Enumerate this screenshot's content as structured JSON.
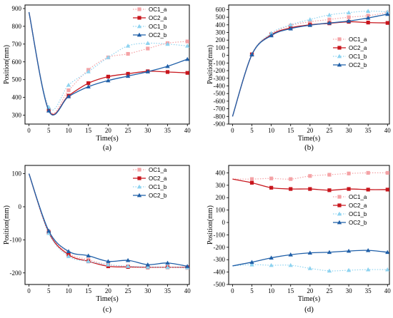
{
  "colors": {
    "OC1_a": "#f4a3a6",
    "OC2_a": "#c8161d",
    "OC1_b": "#8ed3f0",
    "OC2_b": "#1f5fa8"
  },
  "chart_data": [
    {
      "type": "line",
      "panel_label": "(a)",
      "xlabel": "Time(s)",
      "ylabel": "Position(mm)",
      "xlim": [
        -1,
        40.5
      ],
      "ylim": [
        250,
        920
      ],
      "xticks": [
        0,
        5,
        10,
        15,
        20,
        25,
        30,
        35,
        40
      ],
      "yticks": [
        300,
        400,
        500,
        600,
        700,
        800,
        900
      ],
      "legend_position": "top-right",
      "series": [
        {
          "name": "OC1_a",
          "style": "dotted",
          "marker": "square",
          "x": [
            0,
            5,
            10,
            15,
            20,
            25,
            30,
            35,
            40
          ],
          "y": [
            880,
            330,
            440,
            555,
            625,
            645,
            675,
            705,
            715
          ]
        },
        {
          "name": "OC2_a",
          "style": "solid",
          "marker": "square",
          "x": [
            0,
            5,
            10,
            15,
            20,
            25,
            30,
            35,
            40
          ],
          "y": [
            880,
            328,
            410,
            480,
            517,
            533,
            547,
            543,
            538
          ]
        },
        {
          "name": "OC1_b",
          "style": "dotted",
          "marker": "triangle",
          "x": [
            0,
            5,
            10,
            15,
            20,
            25,
            30,
            35,
            40
          ],
          "y": [
            880,
            345,
            470,
            545,
            625,
            690,
            705,
            700,
            690
          ]
        },
        {
          "name": "OC2_b",
          "style": "solid",
          "marker": "triangle",
          "x": [
            0,
            5,
            10,
            15,
            20,
            25,
            30,
            35,
            40
          ],
          "y": [
            880,
            325,
            405,
            460,
            495,
            520,
            545,
            575,
            615
          ]
        }
      ]
    },
    {
      "type": "line",
      "panel_label": "(b)",
      "xlabel": "Time(s)",
      "ylabel": "Position(mm)",
      "xlim": [
        -1,
        40.5
      ],
      "ylim": [
        -900,
        660
      ],
      "xticks": [
        0,
        5,
        10,
        15,
        20,
        25,
        30,
        35,
        40
      ],
      "yticks": [
        -900,
        -800,
        -700,
        -600,
        -500,
        -400,
        -300,
        -200,
        -100,
        0,
        100,
        200,
        300,
        400,
        500,
        600
      ],
      "legend_position": "middle-right",
      "series": [
        {
          "name": "OC1_a",
          "style": "dotted",
          "marker": "square",
          "x": [
            0,
            5,
            10,
            15,
            20,
            25,
            30,
            35,
            40
          ],
          "y": [
            -800,
            20,
            280,
            390,
            440,
            470,
            500,
            520,
            560
          ]
        },
        {
          "name": "OC2_a",
          "style": "solid",
          "marker": "square",
          "x": [
            0,
            5,
            10,
            15,
            20,
            25,
            30,
            35,
            40
          ],
          "y": [
            -800,
            10,
            270,
            360,
            400,
            420,
            440,
            430,
            425
          ]
        },
        {
          "name": "OC1_b",
          "style": "dotted",
          "marker": "triangle",
          "x": [
            0,
            5,
            10,
            15,
            20,
            25,
            30,
            35,
            40
          ],
          "y": [
            -800,
            15,
            290,
            400,
            470,
            530,
            560,
            580,
            570
          ]
        },
        {
          "name": "OC2_b",
          "style": "solid",
          "marker": "triangle",
          "x": [
            0,
            5,
            10,
            15,
            20,
            25,
            30,
            35,
            40
          ],
          "y": [
            -800,
            10,
            260,
            350,
            395,
            425,
            450,
            490,
            540
          ]
        }
      ]
    },
    {
      "type": "line",
      "panel_label": "(c)",
      "xlabel": "Time(s)",
      "ylabel": "Position(mm)",
      "xlim": [
        -1,
        40.5
      ],
      "ylim": [
        -235,
        125
      ],
      "xticks": [
        0,
        5,
        10,
        15,
        20,
        25,
        30,
        35,
        40
      ],
      "yticks": [
        -200,
        -100,
        0,
        100
      ],
      "legend_position": "top-right",
      "series": [
        {
          "name": "OC1_a",
          "style": "dotted",
          "marker": "square",
          "x": [
            0,
            5,
            10,
            15,
            20,
            25,
            30,
            35,
            40
          ],
          "y": [
            100,
            -75,
            -140,
            -160,
            -175,
            -180,
            -182,
            -183,
            -185
          ]
        },
        {
          "name": "OC2_a",
          "style": "solid",
          "marker": "square",
          "x": [
            0,
            5,
            10,
            15,
            20,
            25,
            30,
            35,
            40
          ],
          "y": [
            100,
            -78,
            -145,
            -165,
            -180,
            -182,
            -183,
            -183,
            -183
          ]
        },
        {
          "name": "OC1_b",
          "style": "dotted",
          "marker": "triangle",
          "x": [
            0,
            5,
            10,
            15,
            20,
            25,
            30,
            35,
            40
          ],
          "y": [
            100,
            -80,
            -150,
            -165,
            -175,
            -180,
            -182,
            -183,
            -184
          ]
        },
        {
          "name": "OC2_b",
          "style": "solid",
          "marker": "triangle",
          "x": [
            0,
            5,
            10,
            15,
            20,
            25,
            30,
            35,
            40
          ],
          "y": [
            100,
            -73,
            -135,
            -148,
            -165,
            -162,
            -175,
            -170,
            -180
          ]
        }
      ]
    },
    {
      "type": "line",
      "panel_label": "(d)",
      "xlabel": "Time(s)",
      "ylabel": "Position(mm)",
      "xlim": [
        -1,
        40.5
      ],
      "ylim": [
        -500,
        460
      ],
      "xticks": [
        0,
        5,
        10,
        15,
        20,
        25,
        30,
        35,
        40
      ],
      "yticks": [
        -500,
        -400,
        -300,
        -200,
        -100,
        0,
        100,
        200,
        300,
        400
      ],
      "legend_position": "middle-right",
      "series": [
        {
          "name": "OC1_a",
          "style": "dotted",
          "marker": "square",
          "x": [
            0,
            5,
            10,
            15,
            20,
            25,
            30,
            35,
            40
          ],
          "y": [
            350,
            350,
            355,
            350,
            375,
            385,
            395,
            400,
            400
          ]
        },
        {
          "name": "OC2_a",
          "style": "solid",
          "marker": "square",
          "x": [
            0,
            5,
            10,
            15,
            20,
            25,
            30,
            35,
            40
          ],
          "y": [
            350,
            320,
            280,
            270,
            270,
            260,
            270,
            265,
            265
          ]
        },
        {
          "name": "OC1_b",
          "style": "dotted",
          "marker": "triangle",
          "x": [
            0,
            5,
            10,
            15,
            20,
            25,
            30,
            35,
            40
          ],
          "y": [
            -350,
            -340,
            -345,
            -345,
            -370,
            -390,
            -385,
            -380,
            -380
          ]
        },
        {
          "name": "OC2_b",
          "style": "solid",
          "marker": "triangle",
          "x": [
            0,
            5,
            10,
            15,
            20,
            25,
            30,
            35,
            40
          ],
          "y": [
            -350,
            -320,
            -285,
            -260,
            -245,
            -240,
            -230,
            -225,
            -240
          ]
        }
      ]
    }
  ]
}
